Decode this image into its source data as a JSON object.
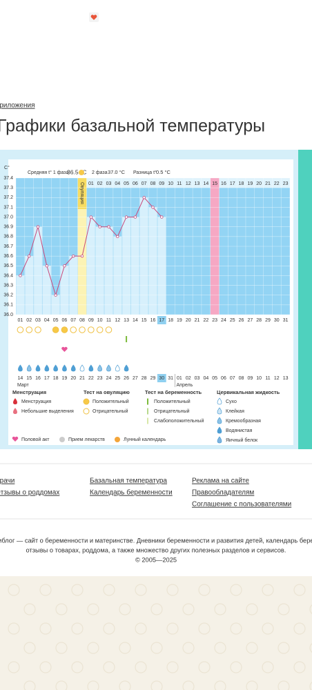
{
  "breadcrumb": "Приложения",
  "title": "Графики базальной температуры",
  "chart_data": {
    "type": "line",
    "y_unit": "C°",
    "stats": [
      {
        "label": "Средняя t° 1 фаза",
        "value": "36.5 °C"
      },
      {
        "label": "2 фаза",
        "value": "37.0 °C"
      },
      {
        "label": "Разница t°",
        "value": "0.5 °C"
      }
    ],
    "categories": [
      "01",
      "02",
      "03",
      "04",
      "05",
      "06",
      "07",
      "08",
      "09",
      "10",
      "11",
      "12",
      "13",
      "14",
      "15",
      "16",
      "17",
      "18",
      "19",
      "20",
      "21",
      "22",
      "23",
      "24",
      "25",
      "26",
      "27",
      "28",
      "29",
      "30",
      "31"
    ],
    "values": [
      36.4,
      36.6,
      36.9,
      36.5,
      36.2,
      36.5,
      36.6,
      36.6,
      37.0,
      36.9,
      36.9,
      36.8,
      37.0,
      37.0,
      37.2,
      37.1,
      37.0,
      null,
      null,
      null,
      null,
      null,
      null,
      null,
      null,
      null,
      null,
      null,
      null,
      null,
      null
    ],
    "color": "#c9487a",
    "ylim": [
      36.0,
      37.4
    ],
    "yticks": [
      {
        "value": 36.0,
        "label": "36.0"
      },
      36.1,
      36.2,
      36.3,
      36.4,
      36.5,
      36.6,
      36.7,
      36.8,
      36.9,
      {
        "value": 37.0,
        "label": "37.0"
      },
      37.1,
      37.2,
      37.3,
      37.4
    ],
    "ovulation_day": 8,
    "ovulation_label": "Овуляция",
    "phase_labels": [
      "01",
      "02",
      "03",
      "04",
      "05",
      "06",
      "07",
      "08",
      "09",
      "10",
      "11",
      "12",
      "13",
      "14",
      "15",
      "16",
      "17",
      "18",
      "19",
      "20",
      "21",
      "22",
      "23"
    ],
    "marked_day": 23,
    "today": 17,
    "ovulation_tests": [
      "neg",
      "neg",
      "neg",
      null,
      "pos",
      "pos",
      "neg",
      "neg",
      "neg",
      "neg",
      "neg",
      null,
      null,
      null,
      null,
      null,
      null,
      null,
      null,
      null,
      null,
      null,
      null,
      null,
      null,
      null,
      null,
      null,
      null,
      null,
      null
    ],
    "pregnancy_tests": [
      null,
      null,
      null,
      null,
      null,
      null,
      null,
      null,
      null,
      null,
      null,
      null,
      "pos",
      null,
      null,
      null,
      null,
      null,
      null,
      null,
      null,
      null,
      null,
      null,
      null,
      null,
      null,
      null,
      null,
      null,
      null
    ],
    "intercourse": [
      6
    ],
    "cervical": [
      "water",
      "cream",
      "water",
      "water",
      "water",
      "water",
      "water",
      "dry",
      "water",
      "cream",
      "cream",
      "dry",
      "water",
      null,
      null,
      null,
      null,
      null,
      null,
      null,
      null,
      null,
      null,
      null,
      null,
      null,
      null,
      null,
      null,
      null,
      null
    ],
    "dates": [
      "14",
      "15",
      "16",
      "17",
      "18",
      "19",
      "20",
      "21",
      "22",
      "23",
      "24",
      "25",
      "26",
      "27",
      "28",
      "29",
      "30",
      "31",
      "01",
      "02",
      "03",
      "04",
      "05",
      "06",
      "07",
      "08",
      "09",
      "10",
      "11",
      "12",
      "13"
    ],
    "weekends": [
      1,
      2,
      8,
      9,
      15,
      16,
      22,
      23,
      29,
      30
    ],
    "months": [
      {
        "name": "Март",
        "start": 0
      },
      {
        "name": "Апрель",
        "start": 18
      }
    ]
  },
  "legend": {
    "groups": [
      {
        "title": "Менструация",
        "items": [
          "Менструация",
          "Небольшие выделения"
        ]
      },
      {
        "title": "Тест на овуляцию",
        "items": [
          "Положительный",
          "Отрицательный"
        ]
      },
      {
        "title": "Тест на беременность",
        "items": [
          "Положительный",
          "Отрицательный",
          "Слабоположительный"
        ]
      },
      {
        "title": "Цервикальная жидкость",
        "items": [
          "Сухо",
          "Клейкая",
          "Кремообразная",
          "Водянистая",
          "Яичный белок"
        ]
      }
    ],
    "extra": [
      "Половой акт",
      "Прием лекарств",
      "Лунный календарь"
    ]
  },
  "footer": {
    "links": [
      [
        "Врачи",
        "Отзывы о роддомах"
      ],
      [
        "Базальная температура",
        "Календарь беременности"
      ],
      [
        "Реклама на сайте",
        "Правообладателям",
        "Соглашение с пользователями"
      ]
    ],
    "about": [
      "Бэбиблог — сайт о беременности и материнстве. Дневники беременности и развития детей, календарь беременности,",
      "отзывы о товарах, роддома, а также множество других полезных разделов и сервисов.",
      "© 2005—2025"
    ]
  }
}
